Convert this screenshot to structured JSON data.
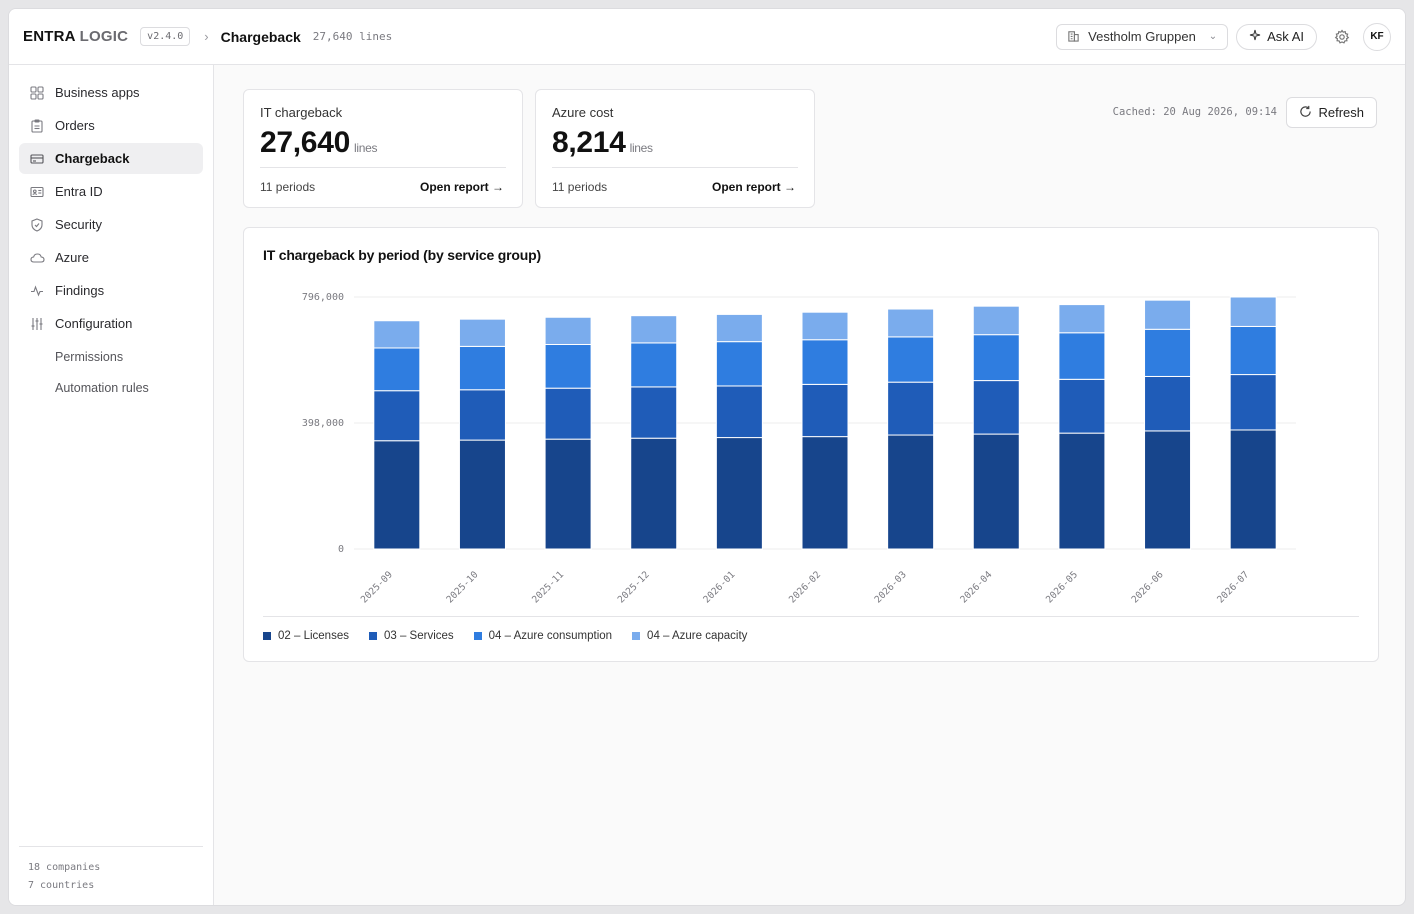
{
  "header": {
    "brand_primary": "ENTRA",
    "brand_secondary": "LOGIC",
    "version": "v2.4.0",
    "page_title": "Chargeback",
    "page_subtitle": "27,640 lines",
    "tenant_name": "Vestholm Gruppen",
    "ask_ai_label": "Ask AI",
    "user_initials": "KF"
  },
  "sidebar": {
    "items": [
      {
        "label": "Business apps",
        "icon": "grid-icon"
      },
      {
        "label": "Orders",
        "icon": "clipboard-icon"
      },
      {
        "label": "Chargeback",
        "icon": "card-icon",
        "active": true
      },
      {
        "label": "Entra ID",
        "icon": "id-card-icon"
      },
      {
        "label": "Security",
        "icon": "shield-icon"
      },
      {
        "label": "Azure",
        "icon": "cloud-icon"
      },
      {
        "label": "Findings",
        "icon": "activity-icon"
      },
      {
        "label": "Configuration",
        "icon": "sliders-icon"
      }
    ],
    "sub_items": [
      {
        "label": "Permissions"
      },
      {
        "label": "Automation rules"
      }
    ],
    "footer": {
      "companies": "18 companies",
      "countries": "7 countries"
    }
  },
  "stats": [
    {
      "label": "IT chargeback",
      "value": "27,640",
      "unit": "lines",
      "periods": "11 periods",
      "link": "Open report →"
    },
    {
      "label": "Azure cost",
      "value": "8,214",
      "unit": "lines",
      "periods": "11 periods",
      "link": "Open report →"
    }
  ],
  "cached_text": "Cached: 20 Aug 2026, 09:14",
  "refresh_label": "Refresh",
  "chart_data": {
    "type": "bar",
    "stacked": true,
    "title": "IT chargeback by period (by service group)",
    "categories": [
      "2025-09",
      "2025-10",
      "2025-11",
      "2025-12",
      "2026-01",
      "2026-02",
      "2026-03",
      "2026-04",
      "2026-05",
      "2026-06",
      "2026-07"
    ],
    "series": [
      {
        "name": "02 – Licenses",
        "color": "#17458c",
        "values": [
          342000,
          344000,
          347000,
          350000,
          352000,
          355000,
          360000,
          363000,
          366000,
          373000,
          376000
        ]
      },
      {
        "name": "03 – Services",
        "color": "#1f5cb8",
        "values": [
          158000,
          159000,
          161000,
          162000,
          163000,
          165000,
          167000,
          169000,
          170000,
          172000,
          175000
        ]
      },
      {
        "name": "04 – Azure consumption",
        "color": "#2f7de0",
        "values": [
          135000,
          137000,
          138000,
          139000,
          140000,
          141000,
          143000,
          145000,
          147000,
          149000,
          152000
        ]
      },
      {
        "name": "04 – Azure capacity",
        "color": "#7aaced",
        "values": [
          86000,
          86000,
          86000,
          86000,
          86000,
          87000,
          88000,
          90000,
          89000,
          92000,
          93000
        ]
      }
    ],
    "y_ticks": [
      0,
      398000,
      796000
    ],
    "y_tick_labels": [
      "0",
      "398,000",
      "796,000"
    ],
    "ylim": [
      0,
      796000
    ],
    "grid": true,
    "legend_position": "bottom-left"
  }
}
